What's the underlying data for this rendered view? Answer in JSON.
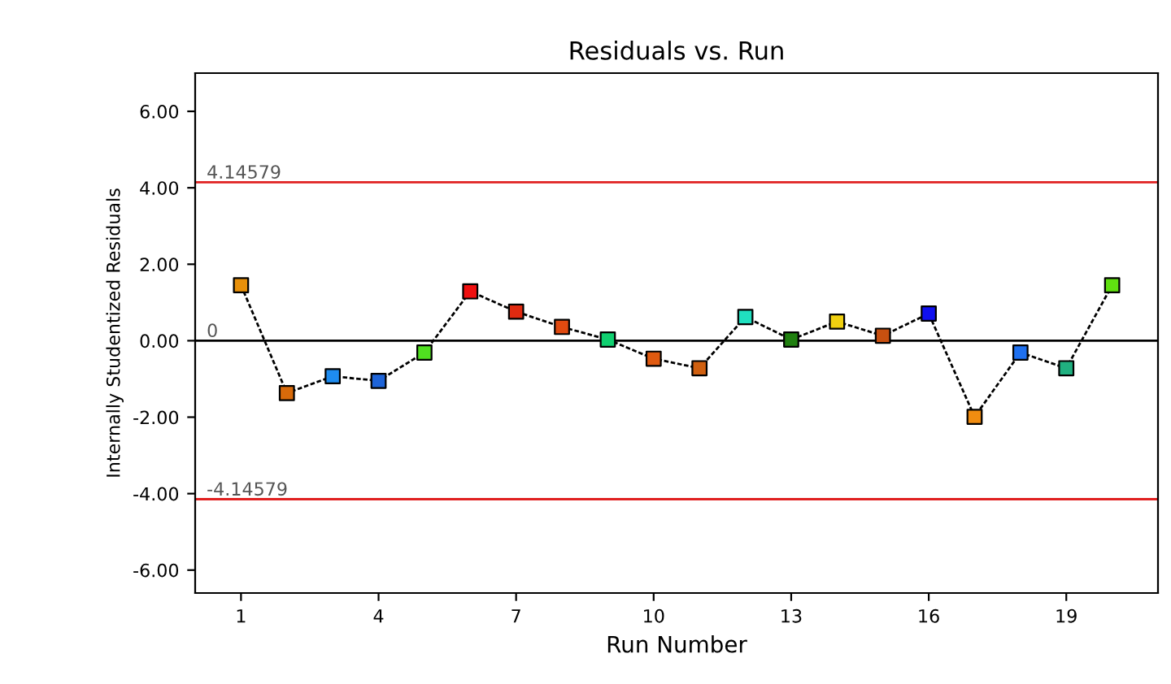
{
  "chart_data": {
    "type": "line",
    "title": "Residuals vs. Run",
    "xlabel": "Run Number",
    "ylabel": "Internally Studentized Residuals",
    "x": [
      1,
      2,
      3,
      4,
      5,
      6,
      7,
      8,
      9,
      10,
      11,
      12,
      13,
      14,
      15,
      16,
      17,
      18,
      19,
      20
    ],
    "series": [
      {
        "color": "#000000",
        "marker": "square",
        "line_style": "dashed",
        "values": [
          1.45,
          -1.37,
          -0.93,
          -1.05,
          -0.31,
          1.29,
          0.76,
          0.36,
          0.03,
          -0.47,
          -0.72,
          0.62,
          0.03,
          0.5,
          0.13,
          0.71,
          -1.99,
          -0.31,
          -0.72,
          1.45
        ],
        "colors": [
          "#e8900a",
          "#d86a0a",
          "#1e8cf0",
          "#1e64d8",
          "#50e020",
          "#f01010",
          "#e02a10",
          "#e04a10",
          "#10d070",
          "#e05a10",
          "#d06010",
          "#20e0c0",
          "#208010",
          "#f0d010",
          "#c85010",
          "#1010f0",
          "#f08c10",
          "#1e70f0",
          "#20b080",
          "#60e010"
        ]
      }
    ],
    "xlim": [
      0,
      21
    ],
    "xticks": [
      1,
      4,
      7,
      10,
      13,
      16,
      19
    ],
    "ylim": [
      -6.6,
      7
    ],
    "yticks": [
      {
        "value": -6,
        "label": "-6.00"
      },
      {
        "value": -4,
        "label": "-4.00"
      },
      {
        "value": -2,
        "label": "-2.00"
      },
      {
        "value": 0,
        "label": "0.00"
      },
      {
        "value": 2,
        "label": "2.00"
      },
      {
        "value": 4,
        "label": "4.00"
      },
      {
        "value": 6,
        "label": "6.00"
      }
    ],
    "ref_lines": [
      {
        "axis": "y",
        "value": 4.14579,
        "label": "4.14579",
        "color": "#e02020"
      },
      {
        "axis": "y",
        "value": 0,
        "label": "0",
        "color": "#000000"
      },
      {
        "axis": "y",
        "value": -4.14579,
        "label": "-4.14579",
        "color": "#e02020"
      }
    ],
    "grid": false,
    "legend": false
  }
}
